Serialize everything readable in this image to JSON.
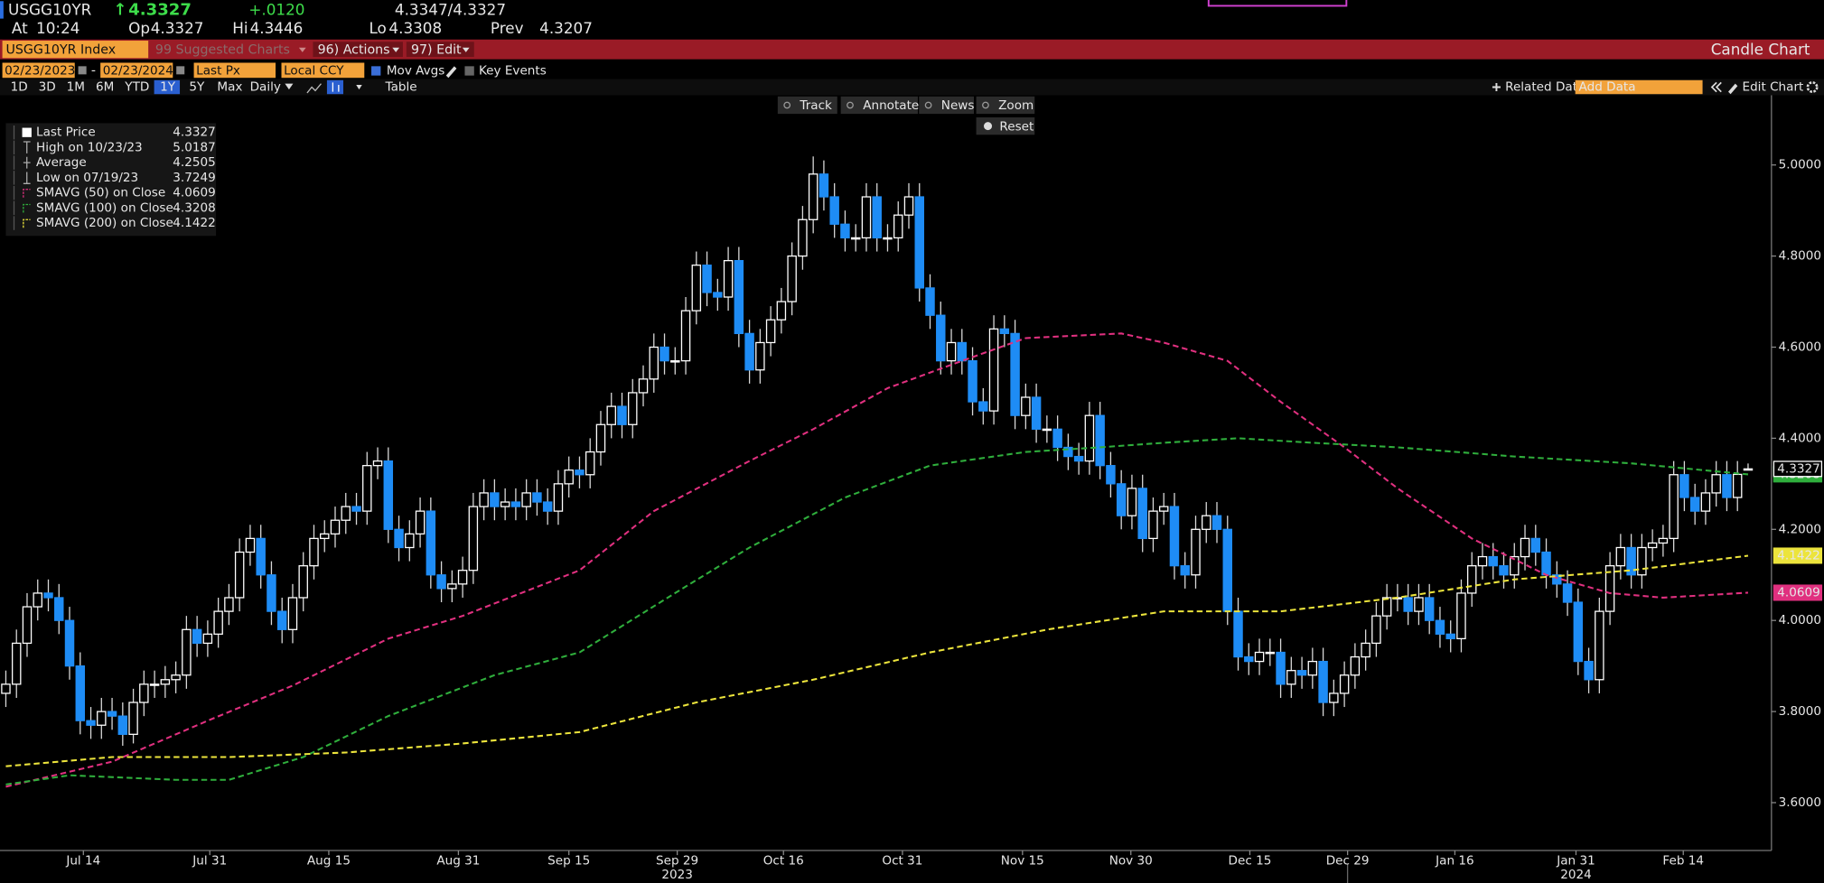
{
  "header": {
    "ticker": "USGG10YR",
    "arrow": "↑",
    "change": "+.0120",
    "bid_ask": "4.3347/4.3327",
    "time_label": "At",
    "time": "10:24",
    "open_label": "Op",
    "high_label": "Hi",
    "low_label": "Lo",
    "prev_label": "Prev"
  },
  "toolbar": {
    "security": "USGG10YR Index",
    "suggested": "99 Suggested Charts",
    "actions": "96) Actions",
    "edit": "97) Edit",
    "chart_kind": "Candle Chart",
    "start_date": "02/23/2023",
    "date_sep": "-",
    "end_date": "02/23/2024",
    "field": "Last Px",
    "currency": "Local CCY",
    "mov_avgs": "Mov Avgs",
    "key_events": "Key Events",
    "periods": [
      "1D",
      "3D",
      "1M",
      "6M",
      "YTD",
      "1Y",
      "5Y",
      "Max"
    ],
    "frequency": "Daily",
    "table": "Table",
    "related": "Related Dat",
    "add_data": "Add Data",
    "edit_chart": "Edit Chart"
  },
  "chart_tools": [
    "Track",
    "Annotate",
    "News",
    "Zoom"
  ],
  "reset": "Reset",
  "chart_data": {
    "type": "candlestick",
    "open": [
      3.84,
      3.86,
      3.95,
      4.03,
      4.06,
      4.05,
      4.0,
      3.9,
      3.78,
      3.77,
      3.8,
      3.79,
      3.75,
      3.82,
      3.86,
      3.86,
      3.87,
      3.88,
      3.98,
      3.95,
      3.97,
      4.02,
      4.05,
      4.15,
      4.18,
      4.1,
      4.02,
      3.98,
      4.05,
      4.12,
      4.18,
      4.19,
      4.22,
      4.25,
      4.24,
      4.34,
      4.35,
      4.2,
      4.16,
      4.19,
      4.24,
      4.1,
      4.07,
      4.08,
      4.11,
      4.25,
      4.28,
      4.25,
      4.26,
      4.25,
      4.28,
      4.26,
      4.24,
      4.3,
      4.33,
      4.32,
      4.37,
      4.43,
      4.47,
      4.43,
      4.5,
      4.53,
      4.6,
      4.57,
      4.57,
      4.68,
      4.78,
      4.72,
      4.71,
      4.79,
      4.63,
      4.55,
      4.61,
      4.66,
      4.7,
      4.8,
      4.88,
      4.98,
      4.93,
      4.87,
      4.84,
      4.84,
      4.93,
      4.84,
      4.84,
      4.89,
      4.93,
      4.73,
      4.67,
      4.57,
      4.61,
      4.57,
      4.48,
      4.46,
      4.64,
      4.63,
      4.45,
      4.49,
      4.42,
      4.42,
      4.38,
      4.36,
      4.35,
      4.45,
      4.34,
      4.3,
      4.23,
      4.29,
      4.18,
      4.24,
      4.25,
      4.12,
      4.1,
      4.2,
      4.23,
      4.2,
      4.02,
      3.92,
      3.91,
      3.93,
      3.93,
      3.86,
      3.89,
      3.88,
      3.91,
      3.82,
      3.84,
      3.88,
      3.92,
      3.95,
      4.01,
      4.05,
      4.05,
      4.02,
      4.05,
      4.0,
      3.97,
      3.96,
      4.06,
      4.12,
      4.14,
      4.12,
      4.1,
      4.14,
      4.18,
      4.15,
      4.1,
      4.08,
      4.04,
      3.91,
      3.87,
      4.02,
      4.12,
      4.16,
      4.1,
      4.16,
      4.17,
      4.18,
      4.32,
      4.27,
      4.24,
      4.28,
      4.32,
      4.27,
      4.3327
    ],
    "high": [
      3.89,
      3.98,
      4.06,
      4.09,
      4.09,
      4.08,
      4.03,
      3.93,
      3.81,
      3.83,
      3.83,
      3.82,
      3.85,
      3.89,
      3.89,
      3.9,
      3.91,
      4.01,
      4.01,
      4.0,
      4.05,
      4.08,
      4.18,
      4.21,
      4.21,
      4.13,
      4.05,
      4.08,
      4.15,
      4.21,
      4.22,
      4.25,
      4.28,
      4.28,
      4.37,
      4.38,
      4.38,
      4.23,
      4.22,
      4.27,
      4.27,
      4.13,
      4.11,
      4.14,
      4.28,
      4.31,
      4.31,
      4.29,
      4.29,
      4.31,
      4.31,
      4.29,
      4.33,
      4.36,
      4.36,
      4.4,
      4.46,
      4.5,
      4.5,
      4.53,
      4.56,
      4.63,
      4.63,
      4.6,
      4.71,
      4.81,
      4.81,
      4.75,
      4.82,
      4.82,
      4.66,
      4.64,
      4.69,
      4.73,
      4.83,
      4.91,
      5.0187,
      5.01,
      4.96,
      4.9,
      4.87,
      4.96,
      4.96,
      4.87,
      4.92,
      4.96,
      4.96,
      4.76,
      4.7,
      4.64,
      4.64,
      4.6,
      4.51,
      4.67,
      4.67,
      4.66,
      4.52,
      4.52,
      4.45,
      4.45,
      4.41,
      4.39,
      4.48,
      4.48,
      4.37,
      4.33,
      4.32,
      4.32,
      4.27,
      4.28,
      4.28,
      4.15,
      4.23,
      4.26,
      4.26,
      4.23,
      4.05,
      3.95,
      3.96,
      3.96,
      3.96,
      3.92,
      3.92,
      3.94,
      3.94,
      3.87,
      3.91,
      3.95,
      3.98,
      4.04,
      4.08,
      4.08,
      4.08,
      4.08,
      4.08,
      4.03,
      4.0,
      4.09,
      4.15,
      4.17,
      4.17,
      4.15,
      4.17,
      4.21,
      4.21,
      4.18,
      4.13,
      4.11,
      4.07,
      3.94,
      4.05,
      4.15,
      4.19,
      4.19,
      4.19,
      4.2,
      4.21,
      4.35,
      4.35,
      4.3,
      4.31,
      4.35,
      4.35,
      4.35,
      4.3446
    ],
    "low": [
      3.81,
      3.83,
      3.92,
      4.0,
      4.02,
      3.97,
      3.87,
      3.75,
      3.74,
      3.74,
      3.76,
      3.7249,
      3.73,
      3.79,
      3.83,
      3.83,
      3.84,
      3.85,
      3.92,
      3.92,
      3.94,
      3.99,
      4.02,
      4.12,
      4.07,
      3.99,
      3.95,
      3.95,
      4.02,
      4.09,
      4.15,
      4.16,
      4.19,
      4.21,
      4.21,
      4.31,
      4.17,
      4.13,
      4.13,
      4.16,
      4.07,
      4.04,
      4.04,
      4.05,
      4.08,
      4.22,
      4.22,
      4.22,
      4.22,
      4.22,
      4.23,
      4.21,
      4.21,
      4.27,
      4.29,
      4.29,
      4.34,
      4.4,
      4.4,
      4.4,
      4.47,
      4.5,
      4.54,
      4.54,
      4.54,
      4.65,
      4.69,
      4.68,
      4.68,
      4.6,
      4.52,
      4.52,
      4.58,
      4.63,
      4.67,
      4.77,
      4.85,
      4.9,
      4.84,
      4.81,
      4.81,
      4.81,
      4.81,
      4.81,
      4.81,
      4.86,
      4.7,
      4.64,
      4.54,
      4.54,
      4.54,
      4.45,
      4.43,
      4.43,
      4.6,
      4.42,
      4.42,
      4.39,
      4.39,
      4.35,
      4.33,
      4.32,
      4.32,
      4.31,
      4.27,
      4.2,
      4.2,
      4.15,
      4.15,
      4.21,
      4.09,
      4.07,
      4.07,
      4.17,
      4.17,
      3.99,
      3.89,
      3.88,
      3.88,
      3.9,
      3.83,
      3.83,
      3.85,
      3.85,
      3.79,
      3.79,
      3.81,
      3.85,
      3.89,
      3.92,
      3.98,
      4.02,
      3.99,
      3.99,
      3.97,
      3.94,
      3.93,
      3.93,
      4.03,
      4.09,
      4.09,
      4.07,
      4.07,
      4.11,
      4.12,
      4.07,
      4.05,
      4.01,
      3.88,
      3.84,
      3.84,
      3.99,
      4.09,
      4.07,
      4.07,
      4.13,
      4.14,
      4.15,
      4.24,
      4.21,
      4.21,
      4.25,
      4.24,
      4.24,
      4.3308
    ],
    "close": [
      3.86,
      3.95,
      4.03,
      4.06,
      4.05,
      4.0,
      3.9,
      3.78,
      3.77,
      3.8,
      3.79,
      3.75,
      3.82,
      3.86,
      3.86,
      3.87,
      3.88,
      3.98,
      3.95,
      3.97,
      4.02,
      4.05,
      4.15,
      4.18,
      4.1,
      4.02,
      3.98,
      4.05,
      4.12,
      4.18,
      4.19,
      4.22,
      4.25,
      4.24,
      4.34,
      4.35,
      4.2,
      4.16,
      4.19,
      4.24,
      4.1,
      4.07,
      4.08,
      4.11,
      4.25,
      4.28,
      4.25,
      4.26,
      4.25,
      4.28,
      4.26,
      4.24,
      4.3,
      4.33,
      4.32,
      4.37,
      4.43,
      4.47,
      4.43,
      4.5,
      4.53,
      4.6,
      4.57,
      4.57,
      4.68,
      4.78,
      4.72,
      4.71,
      4.79,
      4.63,
      4.55,
      4.61,
      4.66,
      4.7,
      4.8,
      4.88,
      4.98,
      4.93,
      4.87,
      4.84,
      4.84,
      4.93,
      4.84,
      4.84,
      4.89,
      4.93,
      4.73,
      4.67,
      4.57,
      4.61,
      4.57,
      4.48,
      4.46,
      4.64,
      4.63,
      4.45,
      4.49,
      4.42,
      4.42,
      4.38,
      4.36,
      4.35,
      4.45,
      4.34,
      4.3,
      4.23,
      4.29,
      4.18,
      4.24,
      4.25,
      4.12,
      4.1,
      4.2,
      4.23,
      4.2,
      4.02,
      3.92,
      3.91,
      3.93,
      3.93,
      3.86,
      3.89,
      3.88,
      3.91,
      3.82,
      3.84,
      3.88,
      3.92,
      3.95,
      4.01,
      4.05,
      4.05,
      4.02,
      4.05,
      4.0,
      3.97,
      3.96,
      4.06,
      4.12,
      4.14,
      4.12,
      4.1,
      4.14,
      4.18,
      4.15,
      4.1,
      4.08,
      4.04,
      3.91,
      3.87,
      4.02,
      4.12,
      4.16,
      4.1,
      4.16,
      4.17,
      4.18,
      4.32,
      4.27,
      4.24,
      4.28,
      4.32,
      4.27,
      4.3207,
      4.3327
    ],
    "up_color": "#ffffff",
    "down_color": "#1e8cf5",
    "series": [
      {
        "name": "SMAVG (50)  on Close",
        "color": "#e0307f",
        "x": [
          0,
          10,
          19,
          27,
          36,
          43,
          54,
          61,
          70,
          76,
          83,
          90,
          96,
          105,
          109,
          115,
          120,
          126,
          131,
          138,
          145,
          151,
          156,
          164
        ],
        "values": [
          3.635,
          3.69,
          3.78,
          3.857,
          3.96,
          4.01,
          4.11,
          4.24,
          4.35,
          4.42,
          4.51,
          4.57,
          4.62,
          4.63,
          4.61,
          4.57,
          4.48,
          4.38,
          4.29,
          4.18,
          4.1,
          4.06,
          4.05,
          4.0609
        ]
      },
      {
        "name": "SMAVG (100)  on Close",
        "color": "#2fae3c",
        "x": [
          0,
          6,
          16,
          21,
          28,
          36,
          46,
          54,
          63,
          70,
          79,
          87,
          96,
          103,
          109,
          116,
          123,
          131,
          142,
          153,
          164
        ],
        "values": [
          3.64,
          3.66,
          3.65,
          3.65,
          3.7,
          3.79,
          3.88,
          3.93,
          4.06,
          4.16,
          4.27,
          4.34,
          4.37,
          4.38,
          4.39,
          4.4,
          4.39,
          4.38,
          4.36,
          4.345,
          4.3208
        ]
      },
      {
        "name": "SMAVG (200)  on Close",
        "color": "#ece43c",
        "x": [
          0,
          10,
          21,
          32,
          43,
          54,
          65,
          76,
          87,
          98,
          109,
          120,
          131,
          142,
          153,
          164
        ],
        "values": [
          3.68,
          3.7,
          3.7,
          3.71,
          3.73,
          3.755,
          3.82,
          3.87,
          3.93,
          3.98,
          4.02,
          4.02,
          4.05,
          4.09,
          4.11,
          4.1422
        ]
      }
    ],
    "legend": [
      "Last Price",
      "High on 10/23/23",
      "Average",
      "Low on 07/19/23"
    ],
    "average": 4.2505,
    "xlim": [
      -0.55,
      166.2
    ],
    "xticks": [
      {
        "value": 7.3,
        "label": "Jul 14"
      },
      {
        "value": 19.2,
        "label": "Jul 31"
      },
      {
        "value": 30.4,
        "label": "Aug 15"
      },
      {
        "value": 42.6,
        "label": "Aug 31"
      },
      {
        "value": 53,
        "label": "Sep 15"
      },
      {
        "value": 63.2,
        "label": "Sep 29"
      },
      {
        "value": 73.2,
        "label": "Oct 16"
      },
      {
        "value": 84.4,
        "label": "Oct 31"
      },
      {
        "value": 95.7,
        "label": "Nov 15"
      },
      {
        "value": 105.9,
        "label": "Nov 30"
      },
      {
        "value": 117.1,
        "label": "Dec 15"
      },
      {
        "value": 126.3,
        "label": "Dec 29"
      },
      {
        "value": 136.4,
        "label": "Jan 16"
      },
      {
        "value": 147.8,
        "label": "Jan 31"
      },
      {
        "value": 157.9,
        "label": "Feb 14"
      }
    ],
    "year_labels": [
      {
        "value": 63.2,
        "label": "2023"
      },
      {
        "value": 147.8,
        "label": "2024"
      }
    ],
    "ylim": [
      3.495,
      5.153
    ],
    "yticks": [
      {
        "value": 3.6,
        "label": "3.6000"
      },
      {
        "value": 3.8,
        "label": "3.8000"
      },
      {
        "value": 4.0,
        "label": "4.0000"
      },
      {
        "value": 4.2,
        "label": "4.2000"
      },
      {
        "value": 4.4,
        "label": "4.4000"
      },
      {
        "value": 4.6,
        "label": "4.6000"
      },
      {
        "value": 4.8,
        "label": "4.8000"
      },
      {
        "value": 5.0,
        "label": "5.0000"
      }
    ]
  }
}
